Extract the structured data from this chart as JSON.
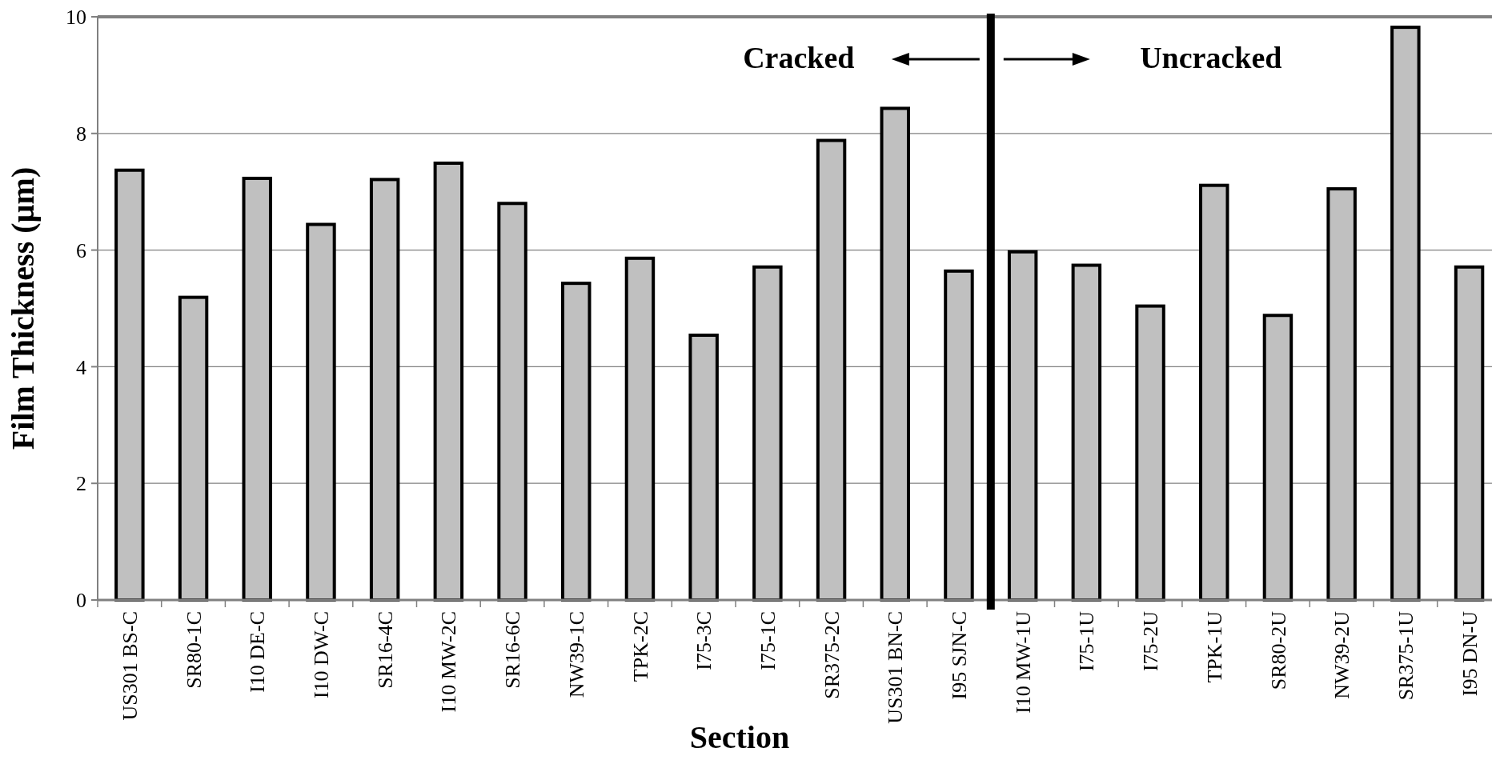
{
  "chart_data": {
    "type": "bar",
    "xlabel": "Section",
    "ylabel": "Film Thickness (µm)",
    "categories": [
      "US301 BS-C",
      "SR80-1C",
      "I10 DE-C",
      "I10 DW-C",
      "SR16-4C",
      "I10 MW-2C",
      "SR16-6C",
      "NW39-1C",
      "TPK-2C",
      "I75-3C",
      "I75-1C",
      "SR375-2C",
      "US301 BN-C",
      "I95 SJN-C",
      "I10 MW-1U",
      "I75-1U",
      "I75-2U",
      "TPK-1U",
      "SR80-2U",
      "NW39-2U",
      "SR375-1U",
      "I95 DN-U"
    ],
    "values": [
      7.37,
      5.19,
      7.23,
      6.44,
      7.21,
      7.49,
      6.8,
      5.43,
      5.86,
      4.54,
      5.71,
      7.88,
      8.43,
      5.64,
      5.97,
      5.74,
      5.04,
      7.11,
      4.88,
      7.05,
      9.82,
      5.71
    ],
    "color": "#c0c0c0",
    "ylim": [
      0,
      10
    ],
    "yticks": [
      0,
      2,
      4,
      6,
      8,
      10
    ],
    "grid": "y",
    "ref_lines": [
      {
        "axis": "x",
        "value": "I10 MW-1U",
        "color": "#000000"
      }
    ],
    "annotations": [
      "Cracked",
      "Uncracked"
    ]
  }
}
